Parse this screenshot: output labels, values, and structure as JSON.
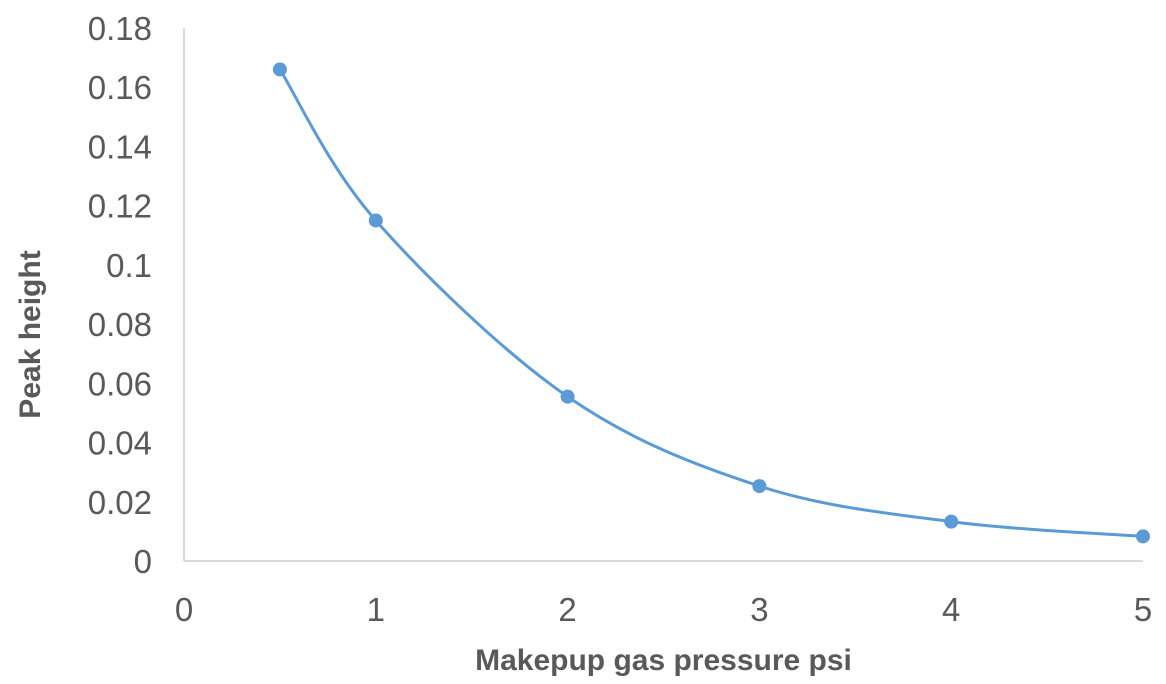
{
  "chart_data": {
    "type": "scatter",
    "title": "",
    "xlabel": "Makepup gas pressure psi",
    "ylabel": "Peak height",
    "xlim": [
      0,
      5
    ],
    "ylim": [
      0,
      0.18
    ],
    "xticks": [
      "0",
      "1",
      "2",
      "3",
      "4",
      "5"
    ],
    "yticks": [
      "0",
      "0.02",
      "0.04",
      "0.06",
      "0.08",
      "0.1",
      "0.12",
      "0.14",
      "0.16",
      "0.18"
    ],
    "grid": false,
    "legend": "none",
    "smoothed_line": true,
    "series": [
      {
        "color": "#5B9BD5",
        "points": [
          {
            "x": 0.5,
            "y": 0.166
          },
          {
            "x": 1,
            "y": 0.115
          },
          {
            "x": 2,
            "y": 0.0555
          },
          {
            "x": 3,
            "y": 0.0253
          },
          {
            "x": 4,
            "y": 0.0133
          },
          {
            "x": 5,
            "y": 0.0083
          }
        ]
      }
    ]
  }
}
